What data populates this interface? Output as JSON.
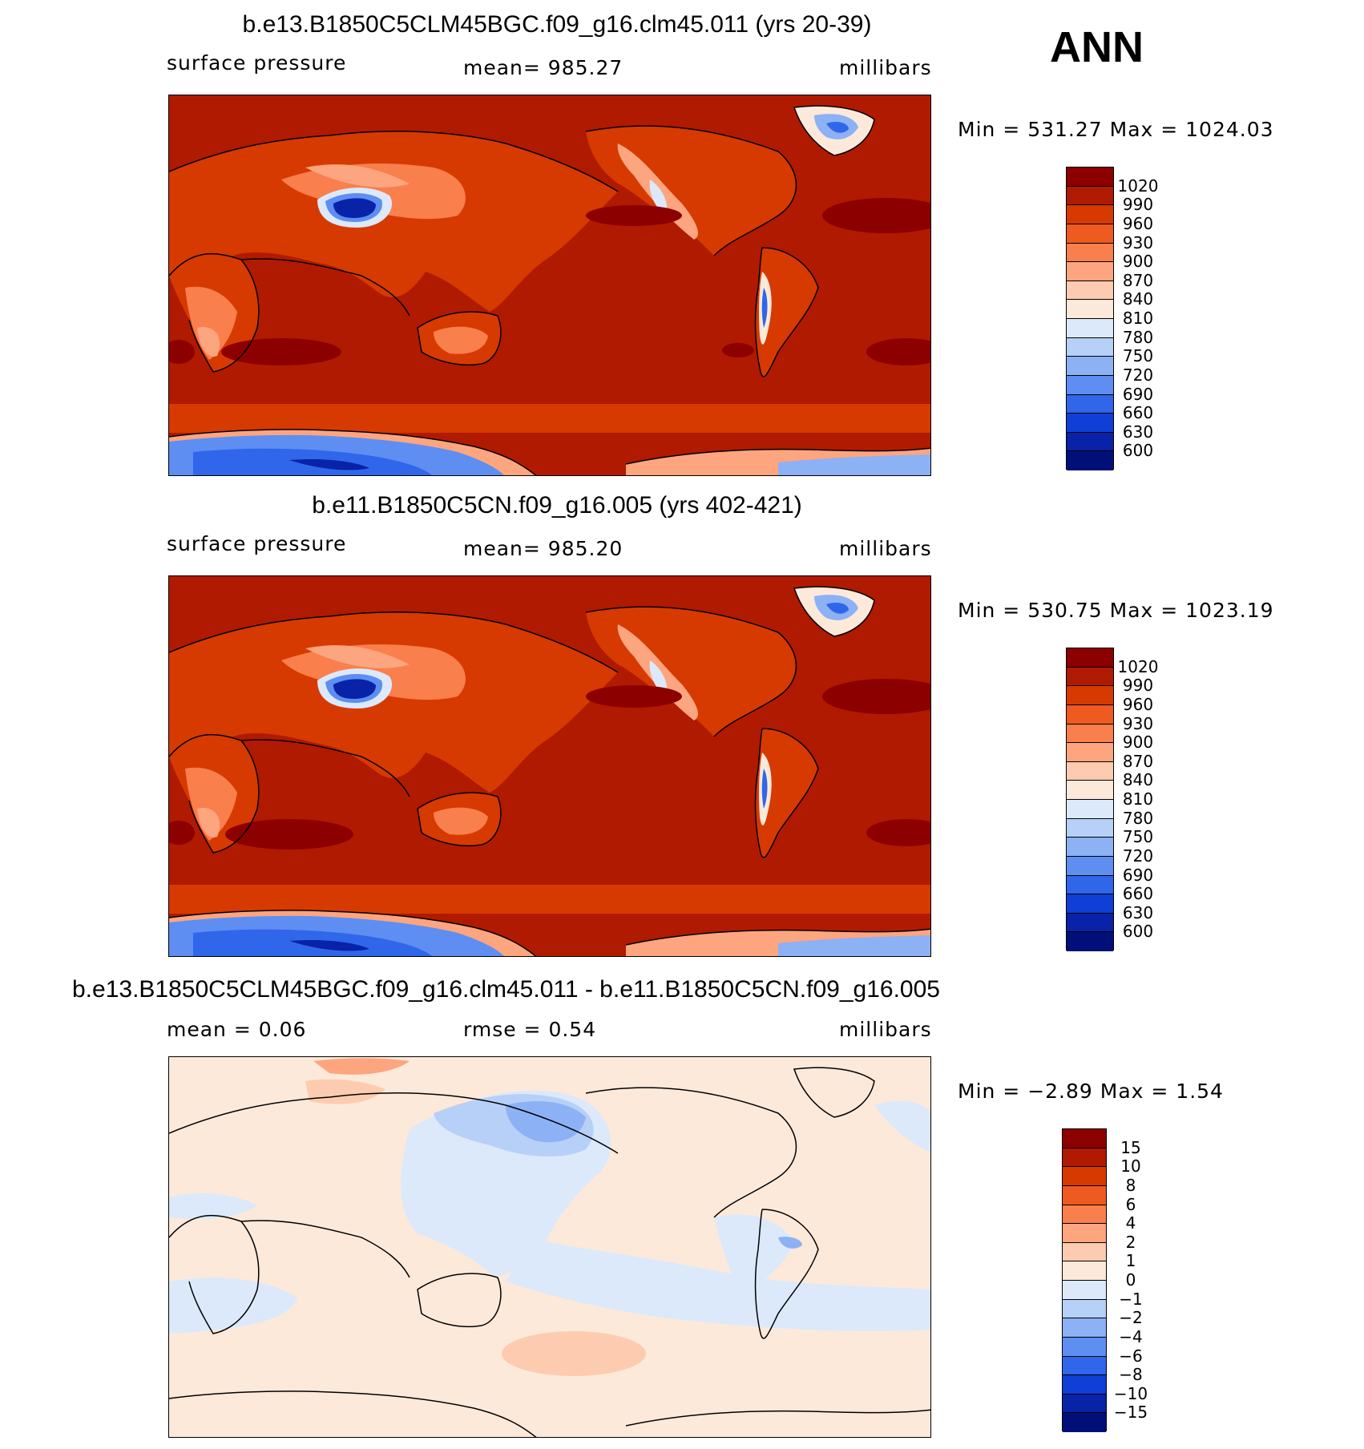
{
  "season": "ANN",
  "panels": [
    {
      "title": "b.e13.B1850C5CLM45BGC.f09_g16.clm45.011 (yrs 20-39)",
      "left_label": "surface pressure",
      "center_label": "mean=  985.27",
      "right_label": "millibars",
      "minmax": "Min  =  531.27  Max  =  1024.03",
      "colorbar_labels": [
        "1020",
        "990",
        "960",
        "930",
        "900",
        "870",
        "840",
        "810",
        "780",
        "750",
        "720",
        "690",
        "660",
        "630",
        "600"
      ],
      "colorbar_colors": [
        "#8c0000",
        "#b01a00",
        "#d63a00",
        "#ef5a20",
        "#f97f4d",
        "#fca57f",
        "#fdccb0",
        "#fde9da",
        "#dbe9fb",
        "#b7d0f8",
        "#8cb1f5",
        "#5e8ef2",
        "#3066ea",
        "#0f3fd6",
        "#0822a8",
        "#001078"
      ]
    },
    {
      "title": "b.e11.B1850C5CN.f09_g16.005 (yrs 402-421)",
      "left_label": "surface pressure",
      "center_label": "mean=  985.20",
      "right_label": "millibars",
      "minmax": "Min  =  530.75  Max  =  1023.19",
      "colorbar_labels": [
        "1020",
        "990",
        "960",
        "930",
        "900",
        "870",
        "840",
        "810",
        "780",
        "750",
        "720",
        "690",
        "660",
        "630",
        "600"
      ],
      "colorbar_colors": [
        "#8c0000",
        "#b01a00",
        "#d63a00",
        "#ef5a20",
        "#f97f4d",
        "#fca57f",
        "#fdccb0",
        "#fde9da",
        "#dbe9fb",
        "#b7d0f8",
        "#8cb1f5",
        "#5e8ef2",
        "#3066ea",
        "#0f3fd6",
        "#0822a8",
        "#001078"
      ]
    },
    {
      "title": "b.e13.B1850C5CLM45BGC.f09_g16.clm45.011 - b.e11.B1850C5CN.f09_g16.005",
      "left_label": "mean =     0.06",
      "center_label": "rmse =     0.54",
      "right_label": "millibars",
      "minmax": "Min  =   −2.89  Max  =     1.54",
      "colorbar_labels": [
        "15",
        "10",
        "8",
        "6",
        "4",
        "2",
        "1",
        "0",
        "−1",
        "−2",
        "−4",
        "−6",
        "−8",
        "−10",
        "−15"
      ],
      "colorbar_colors": [
        "#8c0000",
        "#b01a00",
        "#d63a00",
        "#ef5a20",
        "#f97f4d",
        "#fca57f",
        "#fdccb0",
        "#fde9da",
        "#dbe9fb",
        "#b7d0f8",
        "#8cb1f5",
        "#5e8ef2",
        "#3066ea",
        "#0f3fd6",
        "#0822a8",
        "#001078"
      ]
    }
  ]
}
